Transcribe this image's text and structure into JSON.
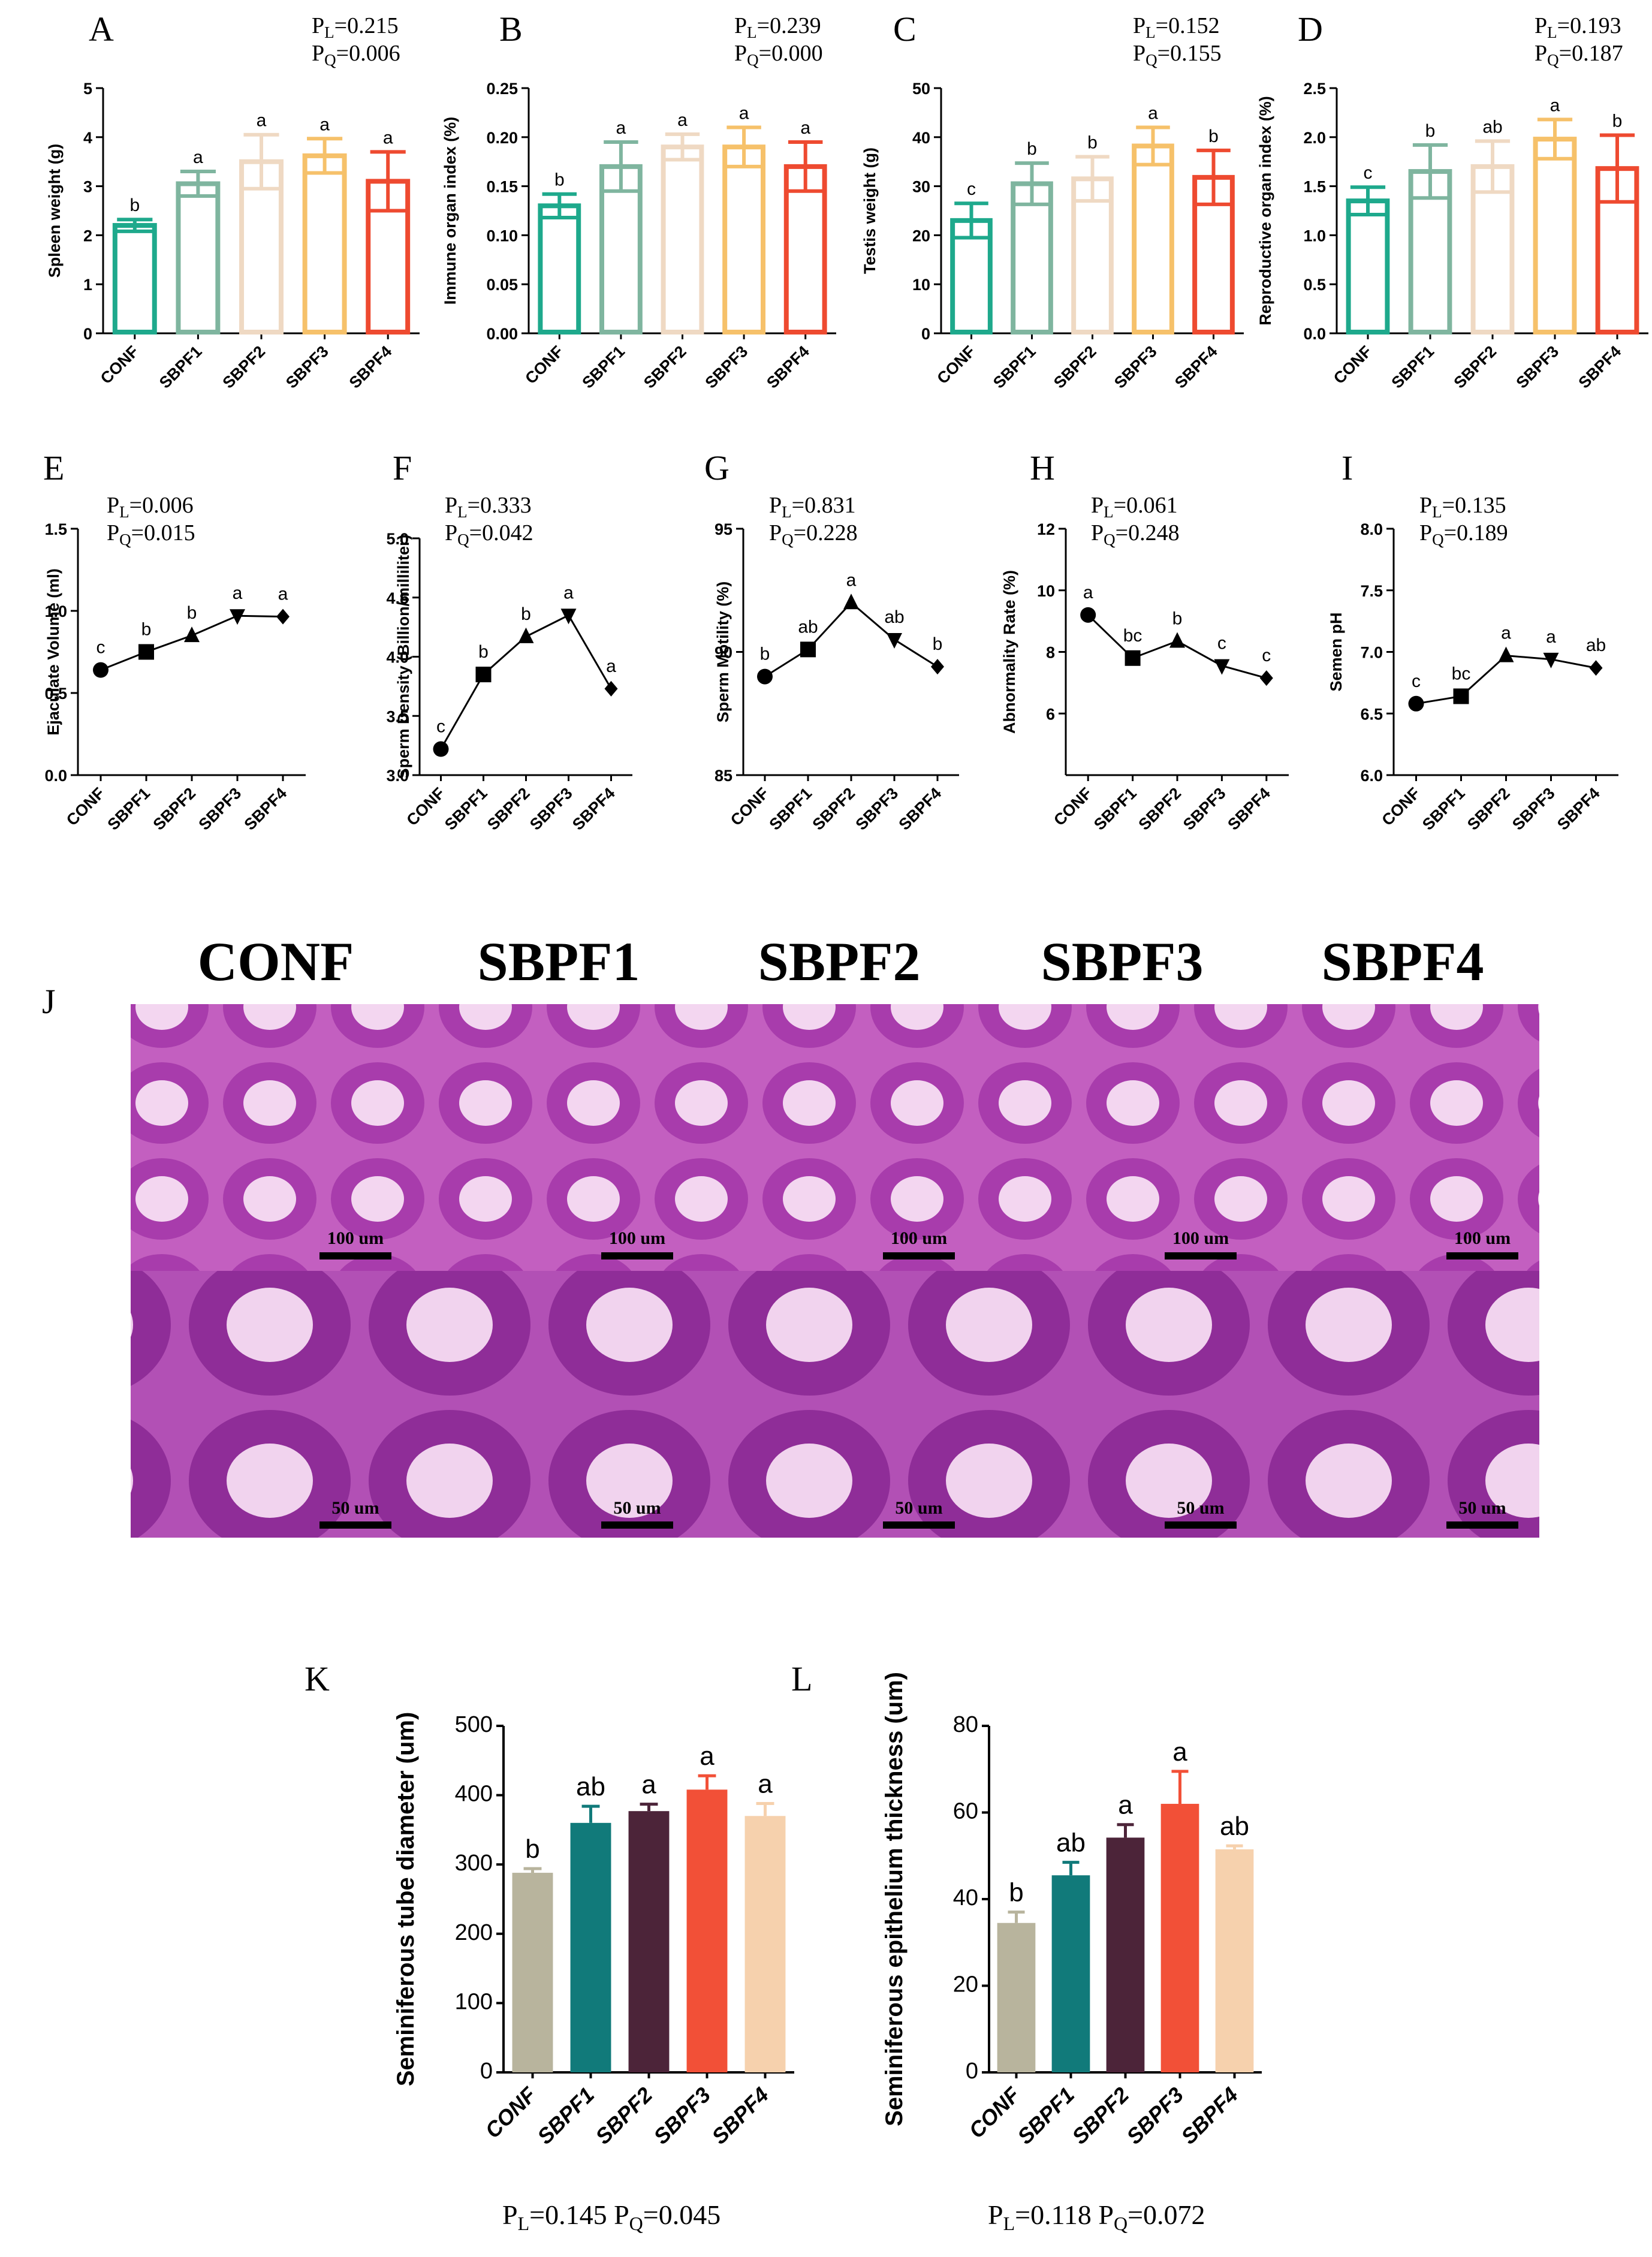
{
  "figure": {
    "histology": {
      "panel_label": "J",
      "groups": [
        "CONF",
        "SBPF1",
        "SBPF2",
        "SBPF3",
        "SBPF4"
      ],
      "scale_top": "100 um",
      "scale_bottom": "50 um",
      "tissue_color": "#c35fc0"
    }
  },
  "chart_data": [
    {
      "id": "A",
      "type": "bar",
      "panel_label": "A",
      "ylabel": "Spleen weight (g)",
      "categories": [
        "CONF",
        "SBPF1",
        "SBPF2",
        "SBPF3",
        "SBPF4"
      ],
      "values": [
        2.2,
        3.05,
        3.5,
        3.62,
        3.1
      ],
      "errors": [
        0.12,
        0.25,
        0.55,
        0.35,
        0.6
      ],
      "letters": [
        "b",
        "a",
        "a",
        "a",
        "a"
      ],
      "ylim": [
        0,
        5
      ],
      "yticks": [
        0,
        1,
        2,
        3,
        4,
        5
      ],
      "pl": "0.215",
      "pq": "0.006"
    },
    {
      "id": "B",
      "type": "bar",
      "panel_label": "B",
      "ylabel": "Immune organ index (%)",
      "categories": [
        "CONF",
        "SBPF1",
        "SBPF2",
        "SBPF3",
        "SBPF4"
      ],
      "values": [
        0.13,
        0.17,
        0.19,
        0.19,
        0.17
      ],
      "errors": [
        0.012,
        0.025,
        0.013,
        0.02,
        0.025
      ],
      "letters": [
        "b",
        "a",
        "a",
        "a",
        "a"
      ],
      "ylim": [
        0,
        0.25
      ],
      "yticks": [
        "0.00",
        "0.05",
        "0.10",
        "0.15",
        "0.20",
        "0.25"
      ],
      "pl": "0.239",
      "pq": "0.000"
    },
    {
      "id": "C",
      "type": "bar",
      "panel_label": "C",
      "ylabel": "Testis weight (g)",
      "categories": [
        "CONF",
        "SBPF1",
        "SBPF2",
        "SBPF3",
        "SBPF4"
      ],
      "values": [
        23,
        30.5,
        31.5,
        38.2,
        31.8
      ],
      "errors": [
        3.5,
        4.2,
        4.5,
        3.8,
        5.5
      ],
      "letters": [
        "c",
        "b",
        "b",
        "a",
        "b"
      ],
      "ylim": [
        0,
        50
      ],
      "yticks": [
        0,
        10,
        20,
        30,
        40,
        50
      ],
      "pl": "0.152",
      "pq": "0.155"
    },
    {
      "id": "D",
      "type": "bar",
      "panel_label": "D",
      "ylabel": "Reproductive organ index (%)",
      "categories": [
        "CONF",
        "SBPF1",
        "SBPF2",
        "SBPF3",
        "SBPF4"
      ],
      "values": [
        1.35,
        1.65,
        1.7,
        1.98,
        1.68
      ],
      "errors": [
        0.14,
        0.27,
        0.26,
        0.2,
        0.34
      ],
      "letters": [
        "c",
        "b",
        "ab",
        "a",
        "b"
      ],
      "ylim": [
        0,
        2.5
      ],
      "yticks": [
        "0.0",
        "0.5",
        "1.0",
        "1.5",
        "2.0",
        "2.5"
      ],
      "pl": "0.193",
      "pq": "0.187"
    },
    {
      "id": "E",
      "type": "line",
      "panel_label": "E",
      "ylabel": "Ejaculate Volume (ml)",
      "categories": [
        "CONF",
        "SBPF1",
        "SBPF2",
        "SBPF3",
        "SBPF4"
      ],
      "values": [
        0.64,
        0.75,
        0.85,
        0.97,
        0.965
      ],
      "letters": [
        "c",
        "b",
        "b",
        "a",
        "a"
      ],
      "ylim": [
        0,
        1.5
      ],
      "yticks": [
        "0.0",
        "0.5",
        "1.0",
        "1.5"
      ],
      "pl": "0.006",
      "pq": "0.015"
    },
    {
      "id": "F",
      "type": "line",
      "panel_label": "F",
      "ylabel": "Sperm Density (Billion/milliliter)",
      "categories": [
        "CONF",
        "SBPF1",
        "SBPF2",
        "SBPF3",
        "SBPF4"
      ],
      "values": [
        3.22,
        3.85,
        4.17,
        4.35,
        3.73
      ],
      "letters": [
        "c",
        "b",
        "b",
        "a",
        "a"
      ],
      "ylim": [
        3.0,
        5.0
      ],
      "yticks": [
        "3.0",
        "3.5",
        "4.0",
        "4.5",
        "5.0"
      ],
      "pl": "0.333",
      "pq": "0.042"
    },
    {
      "id": "G",
      "type": "line",
      "panel_label": "G",
      "ylabel": "Sperm Motility (%)",
      "categories": [
        "CONF",
        "SBPF1",
        "SBPF2",
        "SBPF3",
        "SBPF4"
      ],
      "values": [
        89.0,
        90.1,
        92.0,
        90.5,
        89.4
      ],
      "letters": [
        "b",
        "ab",
        "a",
        "ab",
        "b"
      ],
      "ylim": [
        85,
        95
      ],
      "yticks": [
        "85",
        "90",
        "95"
      ],
      "pl": "0.831",
      "pq": "0.228"
    },
    {
      "id": "H",
      "type": "line",
      "panel_label": "H",
      "ylabel": "Abnormality Rate (%)",
      "categories": [
        "CONF",
        "SBPF1",
        "SBPF2",
        "SBPF3",
        "SBPF4"
      ],
      "values": [
        9.2,
        7.8,
        8.35,
        7.55,
        7.15
      ],
      "letters": [
        "a",
        "bc",
        "b",
        "c",
        "c"
      ],
      "ylim": [
        4,
        12
      ],
      "yticks": [
        "6",
        "8",
        "10",
        "12"
      ],
      "pl": "0.061",
      "pq": "0.248"
    },
    {
      "id": "I",
      "type": "line",
      "panel_label": "I",
      "ylabel": "Semen pH",
      "categories": [
        "CONF",
        "SBPF1",
        "SBPF2",
        "SBPF3",
        "SBPF4"
      ],
      "values": [
        6.58,
        6.64,
        6.97,
        6.94,
        6.87
      ],
      "letters": [
        "c",
        "bc",
        "a",
        "a",
        "ab"
      ],
      "ylim": [
        6.0,
        8.0
      ],
      "yticks": [
        "6.0",
        "6.5",
        "7.0",
        "7.5",
        "8.0"
      ],
      "pl": "0.135",
      "pq": "0.189"
    },
    {
      "id": "K",
      "type": "bar",
      "panel_label": "K",
      "ylabel": "Seminiferous tube diameter (um)",
      "categories": [
        "CONF",
        "SBPF1",
        "SBPF2",
        "SBPF3",
        "SBPF4"
      ],
      "values": [
        288,
        360,
        377,
        408,
        370
      ],
      "errors": [
        6,
        24,
        10,
        20,
        18
      ],
      "letters": [
        "b",
        "ab",
        "a",
        "a",
        "a"
      ],
      "ylim": [
        0,
        500
      ],
      "yticks": [
        "0",
        "100",
        "200",
        "300",
        "400",
        "500"
      ],
      "pl": "0.145",
      "pq": "0.045"
    },
    {
      "id": "L",
      "type": "bar",
      "panel_label": "L",
      "ylabel": "Seminiferous epithelium thickness (um)",
      "categories": [
        "CONF",
        "SBPF1",
        "SBPF2",
        "SBPF3",
        "SBPF4"
      ],
      "values": [
        34.5,
        45.5,
        54.2,
        62,
        51.5
      ],
      "errors": [
        2.5,
        3,
        3,
        7.5,
        0.8
      ],
      "letters": [
        "b",
        "ab",
        "a",
        "a",
        "ab"
      ],
      "ylim": [
        0,
        80
      ],
      "yticks": [
        "0",
        "20",
        "40",
        "60",
        "80"
      ],
      "pl": "0.118",
      "pq": "0.072"
    }
  ],
  "colors": {
    "small_bar_colors": [
      "#1ea98c",
      "#7fb59f",
      "#efd9c3",
      "#f6c16a",
      "#ee4a30"
    ],
    "big_bar_colors": [
      "#b8b49d",
      "#117a7a",
      "#4c2439",
      "#f25037",
      "#f6d1ad"
    ]
  }
}
